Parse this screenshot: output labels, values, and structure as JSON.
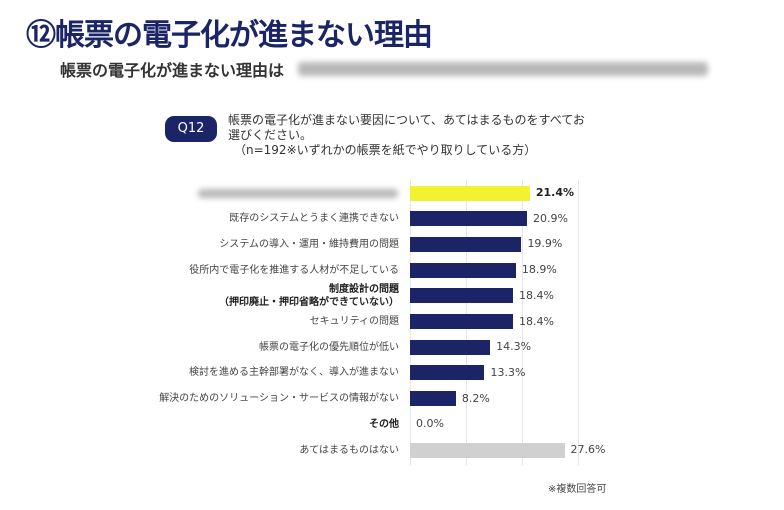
{
  "header": {
    "title": "⑫帳票の電子化が進まない理由",
    "subtitle": "帳票の電子化が進まない理由は"
  },
  "question": {
    "badge": "Q12",
    "line1": "帳票の電子化が進まない要因について、あてはまるものをすべてお",
    "line2": "選びください。",
    "line3": "（n=192※いずれかの帳票を紙でやり取りしている方）"
  },
  "note": "※複数回答可",
  "chart_data": {
    "type": "bar",
    "orientation": "horizontal",
    "categories": [
      "",
      "既存のシステムとうまく連携できない",
      "システムの導入・運用・維持費用の問題",
      "役所内で電子化を推進する人材が不足している",
      "制度設計の問題\n（押印廃止・押印省略ができていない）",
      "セキュリティの問題",
      "帳票の電子化の優先順位が低い",
      "検討を進める主幹部署がなく、導入が進まない",
      "解決のためのソリューション・サービスの情報がない",
      "その他",
      "あてはまるものはない"
    ],
    "values": [
      21.4,
      20.9,
      19.9,
      18.9,
      18.4,
      18.4,
      14.3,
      13.3,
      8.2,
      0.0,
      27.6
    ],
    "value_labels": [
      "21.4%",
      "20.9%",
      "19.9%",
      "18.9%",
      "18.4%",
      "18.4%",
      "14.3%",
      "13.3%",
      "8.2%",
      "0.0%",
      "27.6%"
    ],
    "xlim": [
      0,
      30
    ],
    "grid": true,
    "colors": {
      "highlight": "#f2f230",
      "default": "#1a2466",
      "none": "#d0d0d0"
    }
  }
}
